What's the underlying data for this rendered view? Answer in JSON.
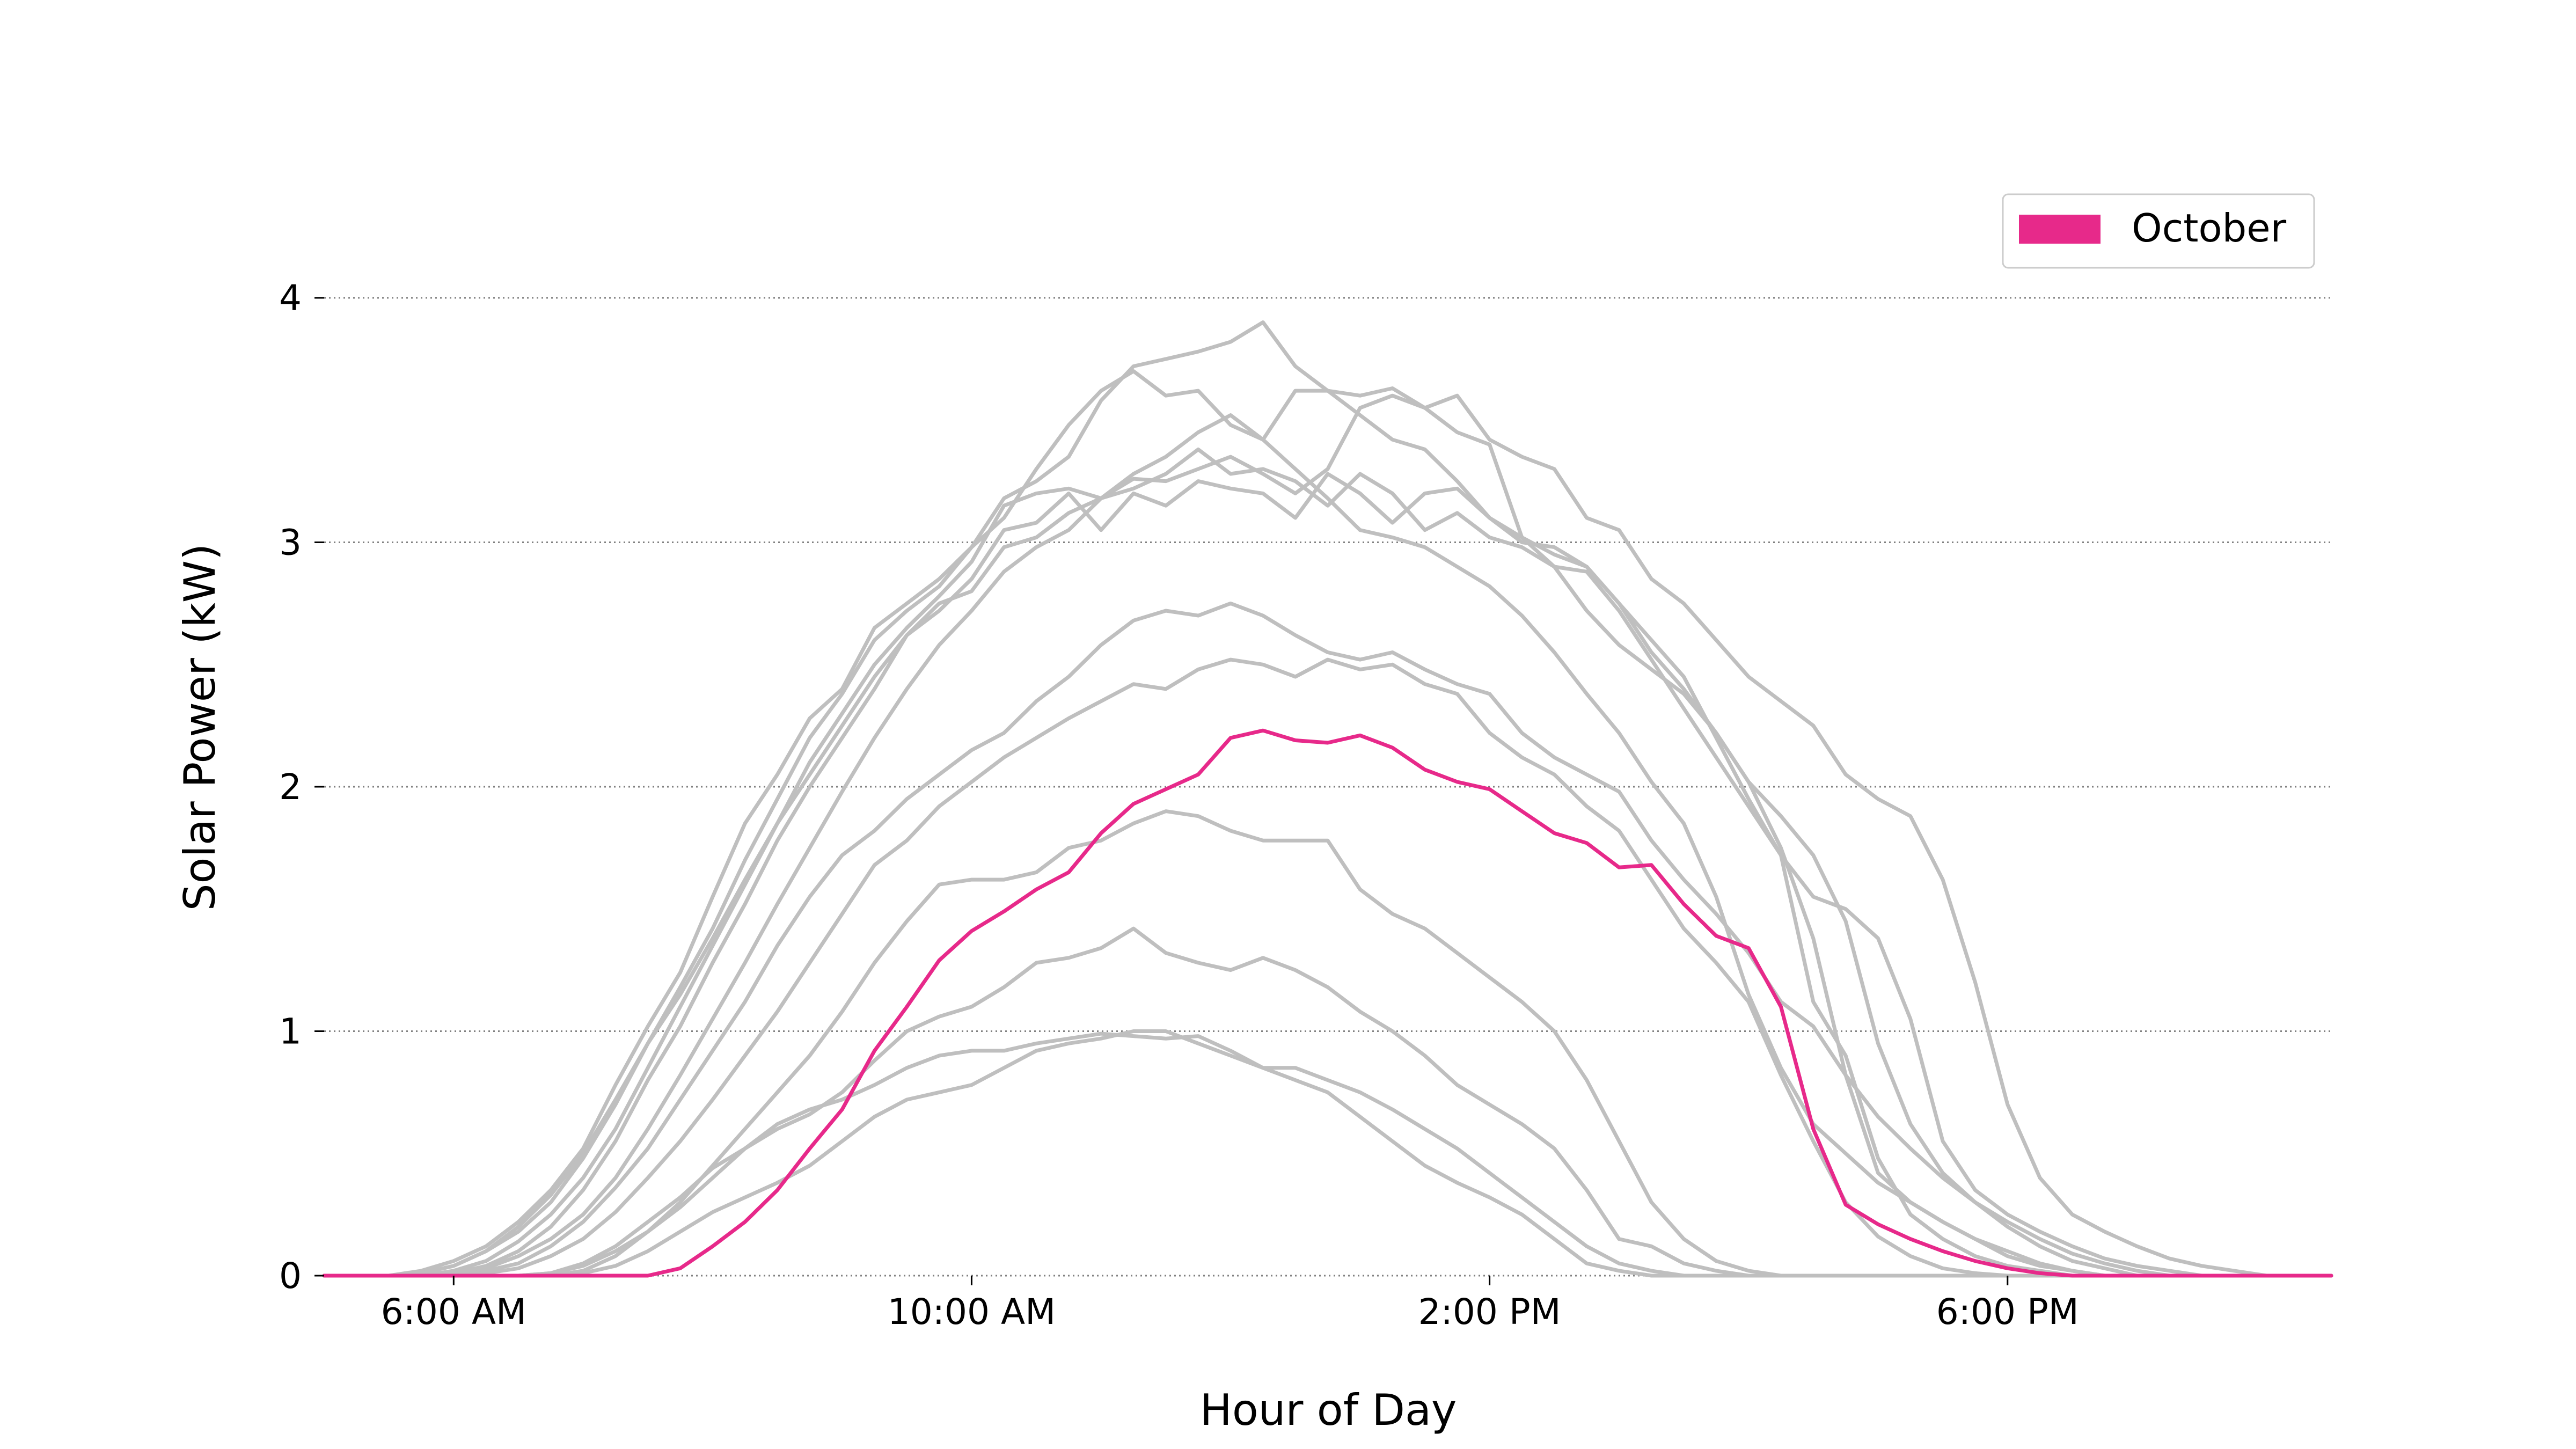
{
  "chart_data": {
    "type": "line",
    "xlabel": "Hour of Day",
    "ylabel": "Solar Power (kW)",
    "xlim": [
      5.0,
      20.5
    ],
    "ylim": [
      0,
      4
    ],
    "x_ticks": [
      {
        "value": 6,
        "label": "6:00 AM"
      },
      {
        "value": 10,
        "label": "10:00 AM"
      },
      {
        "value": 14,
        "label": "2:00 PM"
      },
      {
        "value": 18,
        "label": "6:00 PM"
      }
    ],
    "y_ticks": [
      {
        "value": 0,
        "label": "0"
      },
      {
        "value": 1,
        "label": "1"
      },
      {
        "value": 2,
        "label": "2"
      },
      {
        "value": 3,
        "label": "3"
      },
      {
        "value": 4,
        "label": "4"
      }
    ],
    "grid": "horizontal dotted",
    "legend": {
      "position": "top-right",
      "entries": [
        {
          "label": "October",
          "color": "#e7298a"
        }
      ]
    },
    "colors": {
      "highlight": "#e7298a",
      "other": "#bfbfbf",
      "grid": "#808080"
    },
    "x": [
      5.0,
      5.25,
      5.5,
      5.75,
      6.0,
      6.25,
      6.5,
      6.75,
      7.0,
      7.25,
      7.5,
      7.75,
      8.0,
      8.25,
      8.5,
      8.75,
      9.0,
      9.25,
      9.5,
      9.75,
      10.0,
      10.25,
      10.5,
      10.75,
      11.0,
      11.25,
      11.5,
      11.75,
      12.0,
      12.25,
      12.5,
      12.75,
      13.0,
      13.25,
      13.5,
      13.75,
      14.0,
      14.25,
      14.5,
      14.75,
      15.0,
      15.25,
      15.5,
      15.75,
      16.0,
      16.25,
      16.5,
      16.75,
      17.0,
      17.25,
      17.5,
      17.75,
      18.0,
      18.25,
      18.5,
      18.75,
      19.0,
      19.25,
      19.5,
      19.75,
      20.0,
      20.25,
      20.5
    ],
    "series": [
      {
        "name": "October",
        "highlight": true,
        "values": [
          0,
          0,
          0,
          0,
          0,
          0,
          0,
          0,
          0,
          0,
          0,
          0.03,
          0.12,
          0.22,
          0.35,
          0.52,
          0.68,
          0.92,
          1.1,
          1.29,
          1.41,
          1.49,
          1.58,
          1.65,
          1.81,
          1.93,
          1.99,
          2.05,
          2.2,
          2.23,
          2.19,
          2.18,
          2.21,
          2.16,
          2.07,
          2.02,
          1.99,
          1.9,
          1.81,
          1.77,
          1.67,
          1.68,
          1.52,
          1.39,
          1.34,
          1.1,
          0.6,
          0.29,
          0.21,
          0.15,
          0.1,
          0.06,
          0.03,
          0.01,
          0,
          0,
          0,
          0,
          0,
          0,
          0,
          0,
          0
        ]
      },
      {
        "highlight": false,
        "values": [
          0,
          0,
          0,
          0.02,
          0.06,
          0.12,
          0.22,
          0.35,
          0.52,
          0.78,
          1.02,
          1.24,
          1.55,
          1.85,
          2.05,
          2.28,
          2.4,
          2.65,
          2.75,
          2.85,
          2.98,
          3.1,
          3.3,
          3.48,
          3.62,
          3.7,
          3.6,
          3.62,
          3.48,
          3.42,
          3.62,
          3.62,
          3.6,
          3.63,
          3.55,
          3.45,
          3.4,
          3.02,
          2.95,
          2.9,
          2.75,
          2.55,
          2.4,
          2.22,
          2.02,
          1.75,
          1.38,
          0.82,
          0.42,
          0.3,
          0.22,
          0.15,
          0.08,
          0.04,
          0.02,
          0,
          0,
          0,
          0,
          0,
          0,
          0,
          0
        ]
      },
      {
        "highlight": false,
        "values": [
          0,
          0,
          0,
          0.01,
          0.04,
          0.1,
          0.18,
          0.3,
          0.48,
          0.7,
          0.95,
          1.18,
          1.42,
          1.7,
          1.95,
          2.2,
          2.38,
          2.6,
          2.72,
          2.82,
          2.98,
          3.18,
          3.25,
          3.35,
          3.58,
          3.72,
          3.75,
          3.78,
          3.82,
          3.9,
          3.72,
          3.62,
          3.52,
          3.42,
          3.38,
          3.25,
          3.1,
          3.02,
          2.9,
          2.72,
          2.58,
          2.48,
          2.38,
          2.22,
          2.02,
          1.88,
          1.72,
          1.45,
          0.95,
          0.62,
          0.42,
          0.3,
          0.2,
          0.12,
          0.06,
          0.03,
          0,
          0,
          0,
          0,
          0,
          0,
          0
        ]
      },
      {
        "highlight": false,
        "values": [
          0,
          0,
          0,
          0.01,
          0.04,
          0.1,
          0.2,
          0.33,
          0.5,
          0.72,
          0.95,
          1.15,
          1.38,
          1.62,
          1.85,
          2.1,
          2.3,
          2.5,
          2.65,
          2.78,
          2.92,
          3.15,
          3.2,
          3.22,
          3.18,
          3.26,
          3.25,
          3.3,
          3.35,
          3.28,
          3.2,
          3.3,
          3.55,
          3.6,
          3.55,
          3.6,
          3.42,
          3.35,
          3.3,
          3.1,
          3.05,
          2.85,
          2.75,
          2.6,
          2.45,
          2.35,
          2.25,
          2.05,
          1.95,
          1.88,
          1.62,
          1.2,
          0.7,
          0.4,
          0.25,
          0.18,
          0.12,
          0.07,
          0.04,
          0.02,
          0,
          0,
          0
        ]
      },
      {
        "highlight": false,
        "values": [
          0,
          0,
          0,
          0,
          0.02,
          0.06,
          0.14,
          0.25,
          0.4,
          0.6,
          0.85,
          1.1,
          1.35,
          1.6,
          1.85,
          2.05,
          2.25,
          2.45,
          2.62,
          2.72,
          2.85,
          3.05,
          3.08,
          3.2,
          3.05,
          3.2,
          3.15,
          3.25,
          3.22,
          3.2,
          3.1,
          3.28,
          3.2,
          3.08,
          3.2,
          3.22,
          3.1,
          3.0,
          2.98,
          2.9,
          2.75,
          2.6,
          2.45,
          2.2,
          1.95,
          1.72,
          1.55,
          1.5,
          1.38,
          1.05,
          0.55,
          0.35,
          0.25,
          0.18,
          0.12,
          0.07,
          0.04,
          0.02,
          0,
          0,
          0,
          0,
          0
        ]
      },
      {
        "highlight": false,
        "values": [
          0,
          0,
          0,
          0,
          0.01,
          0.04,
          0.1,
          0.2,
          0.35,
          0.55,
          0.8,
          1.02,
          1.28,
          1.52,
          1.78,
          2.0,
          2.2,
          2.4,
          2.62,
          2.75,
          2.8,
          2.98,
          3.02,
          3.12,
          3.18,
          3.22,
          3.28,
          3.38,
          3.28,
          3.3,
          3.25,
          3.15,
          3.28,
          3.2,
          3.05,
          3.12,
          3.02,
          2.98,
          2.9,
          2.88,
          2.72,
          2.52,
          2.32,
          2.12,
          1.92,
          1.72,
          1.12,
          0.9,
          0.48,
          0.25,
          0.15,
          0.08,
          0.04,
          0.02,
          0,
          0,
          0,
          0,
          0,
          0,
          0,
          0,
          0
        ]
      },
      {
        "highlight": false,
        "values": [
          0,
          0,
          0,
          0,
          0.01,
          0.03,
          0.08,
          0.15,
          0.25,
          0.4,
          0.6,
          0.82,
          1.05,
          1.28,
          1.52,
          1.75,
          1.98,
          2.2,
          2.4,
          2.58,
          2.72,
          2.88,
          2.98,
          3.05,
          3.18,
          3.28,
          3.35,
          3.45,
          3.52,
          3.42,
          3.3,
          3.18,
          3.05,
          3.02,
          2.98,
          2.9,
          2.82,
          2.7,
          2.55,
          2.38,
          2.22,
          2.02,
          1.85,
          1.55,
          1.15,
          0.85,
          0.62,
          0.5,
          0.38,
          0.3,
          0.22,
          0.15,
          0.1,
          0.05,
          0.02,
          0,
          0,
          0,
          0,
          0,
          0,
          0,
          0
        ]
      },
      {
        "highlight": false,
        "values": [
          0,
          0,
          0,
          0,
          0,
          0.02,
          0.05,
          0.12,
          0.22,
          0.36,
          0.52,
          0.72,
          0.92,
          1.12,
          1.35,
          1.55,
          1.72,
          1.82,
          1.95,
          2.05,
          2.15,
          2.22,
          2.35,
          2.45,
          2.58,
          2.68,
          2.72,
          2.7,
          2.75,
          2.7,
          2.62,
          2.55,
          2.52,
          2.55,
          2.48,
          2.42,
          2.38,
          2.22,
          2.12,
          2.05,
          1.98,
          1.78,
          1.62,
          1.48,
          1.32,
          1.12,
          1.02,
          0.82,
          0.65,
          0.52,
          0.4,
          0.3,
          0.22,
          0.15,
          0.09,
          0.05,
          0.02,
          0,
          0,
          0,
          0,
          0,
          0
        ]
      },
      {
        "highlight": false,
        "values": [
          0,
          0,
          0,
          0,
          0,
          0.01,
          0.03,
          0.08,
          0.15,
          0.26,
          0.4,
          0.55,
          0.72,
          0.9,
          1.08,
          1.28,
          1.48,
          1.68,
          1.78,
          1.92,
          2.02,
          2.12,
          2.2,
          2.28,
          2.35,
          2.42,
          2.4,
          2.48,
          2.52,
          2.5,
          2.45,
          2.52,
          2.48,
          2.5,
          2.42,
          2.38,
          2.22,
          2.12,
          2.05,
          1.92,
          1.82,
          1.62,
          1.42,
          1.28,
          1.12,
          0.82,
          0.55,
          0.3,
          0.16,
          0.08,
          0.03,
          0.01,
          0,
          0,
          0,
          0,
          0,
          0,
          0,
          0,
          0,
          0,
          0
        ]
      },
      {
        "highlight": false,
        "values": [
          0,
          0,
          0,
          0,
          0,
          0,
          0,
          0,
          0.02,
          0.08,
          0.18,
          0.3,
          0.45,
          0.6,
          0.75,
          0.9,
          1.08,
          1.28,
          1.45,
          1.6,
          1.62,
          1.62,
          1.65,
          1.75,
          1.78,
          1.85,
          1.9,
          1.88,
          1.82,
          1.78,
          1.78,
          1.78,
          1.58,
          1.48,
          1.42,
          1.32,
          1.22,
          1.12,
          1.0,
          0.8,
          0.55,
          0.3,
          0.15,
          0.06,
          0.02,
          0,
          0,
          0,
          0,
          0,
          0,
          0,
          0,
          0,
          0,
          0,
          0,
          0,
          0,
          0,
          0,
          0,
          0
        ]
      },
      {
        "highlight": false,
        "values": [
          0,
          0,
          0,
          0,
          0,
          0,
          0,
          0.01,
          0.05,
          0.12,
          0.22,
          0.32,
          0.44,
          0.52,
          0.6,
          0.66,
          0.75,
          0.88,
          1.0,
          1.06,
          1.1,
          1.18,
          1.28,
          1.3,
          1.34,
          1.42,
          1.32,
          1.28,
          1.25,
          1.3,
          1.25,
          1.18,
          1.08,
          1.0,
          0.9,
          0.78,
          0.7,
          0.62,
          0.52,
          0.35,
          0.15,
          0.12,
          0.05,
          0.02,
          0,
          0,
          0,
          0,
          0,
          0,
          0,
          0,
          0,
          0,
          0,
          0,
          0,
          0,
          0,
          0,
          0,
          0,
          0
        ]
      },
      {
        "highlight": false,
        "values": [
          0,
          0,
          0,
          0,
          0,
          0,
          0,
          0.01,
          0.04,
          0.1,
          0.18,
          0.28,
          0.4,
          0.52,
          0.62,
          0.68,
          0.72,
          0.78,
          0.85,
          0.9,
          0.92,
          0.92,
          0.95,
          0.97,
          0.99,
          0.98,
          0.97,
          0.98,
          0.92,
          0.85,
          0.85,
          0.8,
          0.75,
          0.68,
          0.6,
          0.52,
          0.42,
          0.32,
          0.22,
          0.12,
          0.05,
          0.02,
          0,
          0,
          0,
          0,
          0,
          0,
          0,
          0,
          0,
          0,
          0,
          0,
          0,
          0,
          0,
          0,
          0,
          0,
          0,
          0,
          0
        ]
      },
      {
        "highlight": false,
        "values": [
          0,
          0,
          0,
          0,
          0,
          0,
          0,
          0,
          0.01,
          0.04,
          0.1,
          0.18,
          0.26,
          0.32,
          0.38,
          0.45,
          0.55,
          0.65,
          0.72,
          0.75,
          0.78,
          0.85,
          0.92,
          0.95,
          0.97,
          1.0,
          1.0,
          0.95,
          0.9,
          0.85,
          0.8,
          0.75,
          0.65,
          0.55,
          0.45,
          0.38,
          0.32,
          0.25,
          0.15,
          0.05,
          0.02,
          0,
          0,
          0,
          0,
          0,
          0,
          0,
          0,
          0,
          0,
          0,
          0,
          0,
          0,
          0,
          0,
          0,
          0,
          0,
          0,
          0,
          0
        ]
      }
    ]
  }
}
